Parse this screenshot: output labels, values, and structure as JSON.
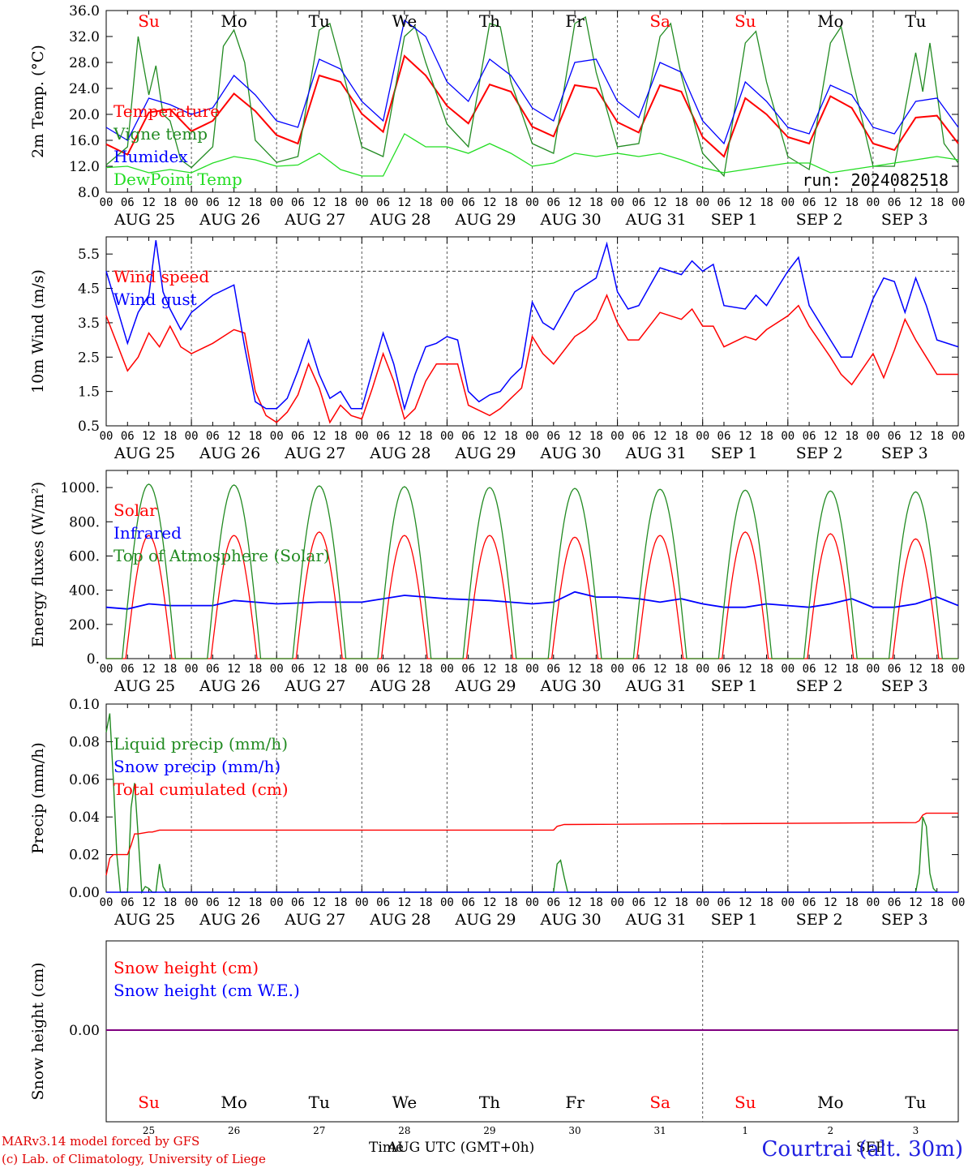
{
  "run_label": "run: 2024082518",
  "footer": {
    "model": "MARv3.14 model forced by GFS",
    "credit": "(c) Lab. of Climatology, University of Liege",
    "xlabel_a": "Time",
    "xlabel_b": "AUG UTC (GMT+0h)",
    "xlabel_c": "SEP",
    "station": "Courtrai (alt. 30m)"
  },
  "colors": {
    "red": "#ff0000",
    "green": "#228b22",
    "blue": "#0000ff",
    "lightgreen": "#22dd22",
    "purple": "#800080",
    "grid": "#555555"
  },
  "hour_ticks": [
    "00",
    "06",
    "12",
    "18"
  ],
  "day_labels": [
    "AUG 25",
    "AUG 26",
    "AUG 27",
    "AUG 28",
    "AUG 29",
    "AUG 30",
    "AUG 31",
    "SEP  1",
    "SEP  2",
    "SEP  3"
  ],
  "weekdays": [
    {
      "d": "Su",
      "color": "red"
    },
    {
      "d": "Mo",
      "color": "black"
    },
    {
      "d": "Tu",
      "color": "black"
    },
    {
      "d": "We",
      "color": "black"
    },
    {
      "d": "Th",
      "color": "black"
    },
    {
      "d": "Fr",
      "color": "black"
    },
    {
      "d": "Sa",
      "color": "red"
    },
    {
      "d": "Su",
      "color": "red"
    },
    {
      "d": "Mo",
      "color": "black"
    },
    {
      "d": "Tu",
      "color": "black"
    }
  ],
  "bottom_day_numbers": [
    "25",
    "26",
    "27",
    "28",
    "29",
    "30",
    "31",
    "1",
    "2",
    "3"
  ],
  "chart_data": [
    {
      "type": "line",
      "ylabel": "2m Temp. (°C)",
      "ylim": [
        8,
        36
      ],
      "yticks": [
        "8.0",
        "12.0",
        "16.0",
        "20.0",
        "24.0",
        "28.0",
        "32.0",
        "36.0"
      ],
      "x_unit": "hours since AUG 25 00 UTC",
      "xlim": [
        0,
        240
      ],
      "series": [
        {
          "name": "Temperature",
          "color": "red",
          "x": [
            0,
            6,
            12,
            18,
            24,
            30,
            36,
            42,
            48,
            54,
            60,
            66,
            72,
            78,
            84,
            90,
            96,
            102,
            108,
            114,
            120,
            126,
            132,
            138,
            144,
            150,
            156,
            162,
            168,
            174,
            180,
            186,
            192,
            198,
            204,
            210,
            216,
            222,
            228,
            234,
            240
          ],
          "y": [
            15.4,
            13.8,
            20.3,
            20.8,
            17.4,
            19.0,
            23.2,
            20.5,
            16.8,
            15.5,
            26.0,
            25.0,
            20.1,
            17.3,
            29.0,
            26.0,
            21.3,
            18.6,
            24.6,
            23.5,
            18.1,
            16.6,
            24.5,
            24.0,
            18.8,
            17.2,
            24.5,
            23.5,
            16.5,
            13.5,
            22.5,
            20.0,
            16.5,
            15.5,
            22.8,
            21.0,
            15.5,
            14.5,
            19.5,
            19.8,
            15.5
          ]
        },
        {
          "name": "Vigne temp",
          "color": "green",
          "x": [
            0,
            6,
            9,
            12,
            14,
            16,
            18,
            21,
            24,
            30,
            33,
            36,
            39,
            42,
            48,
            54,
            60,
            63,
            66,
            72,
            78,
            84,
            87,
            90,
            96,
            102,
            108,
            111,
            114,
            120,
            126,
            132,
            135,
            138,
            144,
            150,
            156,
            159,
            162,
            168,
            174,
            180,
            183,
            186,
            192,
            198,
            204,
            207,
            210,
            216,
            222,
            228,
            230,
            232,
            236,
            240
          ],
          "y": [
            12.2,
            15.0,
            32.0,
            23.0,
            27.5,
            20.0,
            19.0,
            13.0,
            11.8,
            15.0,
            30.5,
            33.0,
            28.0,
            16.0,
            12.6,
            13.5,
            33.0,
            34.0,
            28.0,
            15.0,
            13.5,
            32.0,
            33.5,
            28.0,
            18.5,
            15.0,
            34.0,
            33.5,
            25.0,
            15.5,
            14.0,
            34.0,
            35.0,
            26.5,
            15.0,
            15.5,
            32.0,
            34.0,
            26.0,
            14.0,
            10.5,
            31.0,
            32.8,
            25.0,
            13.5,
            11.5,
            31.0,
            33.5,
            26.0,
            12.0,
            12.0,
            29.5,
            23.5,
            31.0,
            15.5,
            12.5
          ]
        },
        {
          "name": "Humidex",
          "color": "blue",
          "x": [
            0,
            6,
            12,
            18,
            24,
            30,
            36,
            42,
            48,
            54,
            60,
            66,
            72,
            78,
            84,
            90,
            96,
            102,
            108,
            114,
            120,
            126,
            132,
            138,
            144,
            150,
            156,
            162,
            168,
            174,
            180,
            186,
            192,
            198,
            204,
            210,
            216,
            222,
            228,
            234,
            240
          ],
          "y": [
            18.0,
            16.0,
            22.5,
            21.5,
            20.0,
            21.0,
            26.0,
            23.0,
            19.0,
            18.0,
            28.5,
            27.0,
            22.0,
            19.0,
            34.5,
            32.0,
            25.0,
            22.0,
            28.5,
            26.0,
            21.0,
            19.0,
            28.0,
            28.5,
            22.0,
            19.5,
            28.0,
            26.5,
            19.0,
            15.5,
            25.0,
            22.0,
            18.0,
            17.0,
            24.5,
            23.0,
            18.0,
            17.0,
            22.0,
            22.5,
            18.0
          ]
        },
        {
          "name": "DewPoint Temp",
          "color": "lightgreen",
          "x": [
            0,
            6,
            12,
            18,
            24,
            30,
            36,
            42,
            48,
            54,
            60,
            66,
            72,
            78,
            84,
            90,
            96,
            102,
            108,
            114,
            120,
            126,
            132,
            138,
            144,
            150,
            156,
            162,
            168,
            174,
            180,
            186,
            192,
            198,
            204,
            210,
            216,
            222,
            228,
            234,
            240
          ],
          "y": [
            11.8,
            12.0,
            11.0,
            11.5,
            11.0,
            12.5,
            13.5,
            13.0,
            12.0,
            12.2,
            14.0,
            11.5,
            10.5,
            10.5,
            17.0,
            15.0,
            15.0,
            14.0,
            15.5,
            14.0,
            12.0,
            12.5,
            14.0,
            13.5,
            14.0,
            13.5,
            14.0,
            13.0,
            11.8,
            11.0,
            11.5,
            12.0,
            12.5,
            12.5,
            11.0,
            11.5,
            12.0,
            12.5,
            13.0,
            13.5,
            13.0
          ]
        }
      ]
    },
    {
      "type": "line",
      "ylabel": "10m Wind (m/s)",
      "ylim": [
        0.5,
        6.0
      ],
      "yticks": [
        "0.5",
        "1.5",
        "2.5",
        "3.5",
        "4.5",
        "5.5"
      ],
      "ref_line": 5.0,
      "xlim": [
        0,
        240
      ],
      "series": [
        {
          "name": "Wind speed",
          "color": "red",
          "x": [
            0,
            6,
            9,
            12,
            15,
            18,
            21,
            24,
            30,
            36,
            39,
            42,
            45,
            48,
            51,
            54,
            57,
            60,
            63,
            66,
            69,
            72,
            75,
            78,
            81,
            84,
            87,
            90,
            93,
            96,
            99,
            102,
            108,
            111,
            114,
            117,
            120,
            123,
            126,
            132,
            135,
            138,
            141,
            144,
            147,
            150,
            156,
            162,
            165,
            168,
            171,
            174,
            180,
            183,
            186,
            192,
            195,
            198,
            204,
            207,
            210,
            216,
            219,
            222,
            225,
            228,
            231,
            234,
            240
          ],
          "y": [
            3.7,
            2.1,
            2.5,
            3.2,
            2.8,
            3.4,
            2.8,
            2.6,
            2.9,
            3.3,
            3.2,
            1.5,
            0.8,
            0.6,
            0.9,
            1.4,
            2.3,
            1.6,
            0.6,
            1.1,
            0.8,
            0.7,
            1.6,
            2.6,
            1.8,
            0.7,
            1.0,
            1.8,
            2.3,
            2.3,
            2.3,
            1.1,
            0.8,
            1.0,
            1.3,
            1.6,
            3.1,
            2.6,
            2.3,
            3.1,
            3.3,
            3.6,
            4.3,
            3.5,
            3.0,
            3.0,
            3.8,
            3.6,
            3.9,
            3.4,
            3.4,
            2.8,
            3.1,
            3.0,
            3.3,
            3.7,
            4.0,
            3.4,
            2.5,
            2.0,
            1.7,
            2.6,
            1.9,
            2.7,
            3.6,
            3.0,
            2.5,
            2.0,
            2.0
          ]
        },
        {
          "name": "Wind gust",
          "color": "blue",
          "x": [
            0,
            6,
            9,
            12,
            14,
            16,
            18,
            21,
            24,
            30,
            36,
            39,
            42,
            45,
            48,
            51,
            54,
            57,
            60,
            63,
            66,
            69,
            72,
            75,
            78,
            81,
            84,
            87,
            90,
            93,
            96,
            99,
            102,
            105,
            108,
            111,
            114,
            117,
            120,
            123,
            126,
            132,
            135,
            138,
            141,
            144,
            147,
            150,
            156,
            162,
            165,
            168,
            171,
            174,
            180,
            183,
            186,
            192,
            195,
            198,
            204,
            207,
            210,
            216,
            219,
            222,
            225,
            228,
            231,
            234,
            240
          ],
          "y": [
            5.0,
            2.9,
            3.8,
            4.3,
            5.9,
            4.4,
            3.9,
            3.3,
            3.8,
            4.3,
            4.6,
            2.8,
            1.2,
            1.0,
            1.0,
            1.3,
            2.1,
            3.0,
            2.0,
            1.3,
            1.5,
            1.0,
            1.0,
            2.1,
            3.2,
            2.3,
            1.0,
            2.0,
            2.8,
            2.9,
            3.1,
            3.0,
            1.5,
            1.2,
            1.4,
            1.5,
            1.9,
            2.2,
            4.1,
            3.5,
            3.3,
            4.4,
            4.6,
            4.8,
            5.8,
            4.4,
            3.9,
            4.0,
            5.1,
            4.9,
            5.3,
            5.0,
            5.2,
            4.0,
            3.9,
            4.3,
            4.0,
            5.0,
            5.4,
            4.0,
            3.0,
            2.5,
            2.5,
            4.2,
            4.8,
            4.7,
            3.8,
            4.8,
            4.0,
            3.0,
            2.8
          ]
        }
      ]
    },
    {
      "type": "line",
      "ylabel": "Energy fluxes (W/m²)",
      "ylim": [
        0,
        1100
      ],
      "yticks": [
        "0.",
        "200.",
        "400.",
        "600.",
        "800.",
        "1000."
      ],
      "xlim": [
        0,
        240
      ],
      "series": [
        {
          "name": "Solar",
          "color": "red",
          "daily_peaks": [
            720,
            720,
            740,
            720,
            720,
            710,
            720,
            740,
            730,
            700
          ]
        },
        {
          "name": "Infrared",
          "color": "blue",
          "x": [
            0,
            6,
            12,
            18,
            24,
            30,
            36,
            42,
            48,
            60,
            72,
            84,
            96,
            108,
            120,
            126,
            132,
            138,
            144,
            150,
            156,
            162,
            168,
            174,
            180,
            186,
            192,
            198,
            204,
            210,
            216,
            222,
            228,
            234,
            240
          ],
          "y": [
            300,
            290,
            320,
            310,
            310,
            310,
            340,
            330,
            320,
            330,
            330,
            370,
            350,
            340,
            320,
            330,
            390,
            360,
            360,
            350,
            330,
            350,
            320,
            300,
            300,
            320,
            310,
            300,
            320,
            350,
            300,
            300,
            320,
            360,
            310
          ]
        },
        {
          "name": "Top of Atmosphere (Solar)",
          "color": "green",
          "daily_peaks": [
            1020,
            1015,
            1010,
            1005,
            1000,
            995,
            990,
            985,
            980,
            975
          ]
        }
      ]
    },
    {
      "type": "line",
      "ylabel": "Precip (mm/h)",
      "ylim": [
        0,
        0.1
      ],
      "yticks": [
        "0.00",
        "0.02",
        "0.04",
        "0.06",
        "0.08",
        "0.10"
      ],
      "xlim": [
        0,
        240
      ],
      "series": [
        {
          "name": "Liquid precip (mm/h)",
          "color": "green",
          "x": [
            0,
            1,
            2,
            3,
            4,
            5,
            6,
            7,
            8,
            9,
            10,
            11,
            12,
            13,
            14,
            15,
            16,
            17,
            18,
            126,
            127,
            128,
            129,
            130,
            131,
            228,
            229,
            230,
            231,
            232,
            233,
            234
          ],
          "y": [
            0.085,
            0.095,
            0.06,
            0.02,
            0.0,
            0.0,
            0.0,
            0.045,
            0.058,
            0.03,
            0.0,
            0.003,
            0.002,
            0.0,
            0.0,
            0.015,
            0.003,
            0.0,
            0.0,
            0.0,
            0.015,
            0.017,
            0.008,
            0.0,
            0.0,
            0.0,
            0.01,
            0.04,
            0.035,
            0.01,
            0.002,
            0.0
          ]
        },
        {
          "name": "Snow precip (mm/h)",
          "color": "blue",
          "x": [
            0,
            240
          ],
          "y": [
            0.0,
            0.0
          ]
        },
        {
          "name": "Total cumulated (cm)",
          "color": "red",
          "x": [
            0,
            1,
            2,
            3,
            6,
            7,
            8,
            9,
            12,
            13,
            15,
            16,
            18,
            126,
            127,
            129,
            130,
            228,
            229,
            230,
            231,
            232,
            240
          ],
          "y": [
            0.009,
            0.018,
            0.02,
            0.02,
            0.02,
            0.025,
            0.031,
            0.031,
            0.032,
            0.032,
            0.033,
            0.033,
            0.033,
            0.033,
            0.035,
            0.036,
            0.036,
            0.037,
            0.038,
            0.041,
            0.042,
            0.042,
            0.042
          ]
        }
      ]
    },
    {
      "type": "line",
      "ylabel": "Snow height (cm)",
      "yticks": [
        "0.00"
      ],
      "xlim": [
        0,
        240
      ],
      "series": [
        {
          "name": "Snow height (cm)",
          "color": "red",
          "x": [
            0,
            240
          ],
          "y": [
            0,
            0
          ]
        },
        {
          "name": "Snow height (cm W.E.)",
          "color": "blue",
          "x": [
            0,
            240
          ],
          "y": [
            0,
            0
          ]
        }
      ]
    }
  ]
}
